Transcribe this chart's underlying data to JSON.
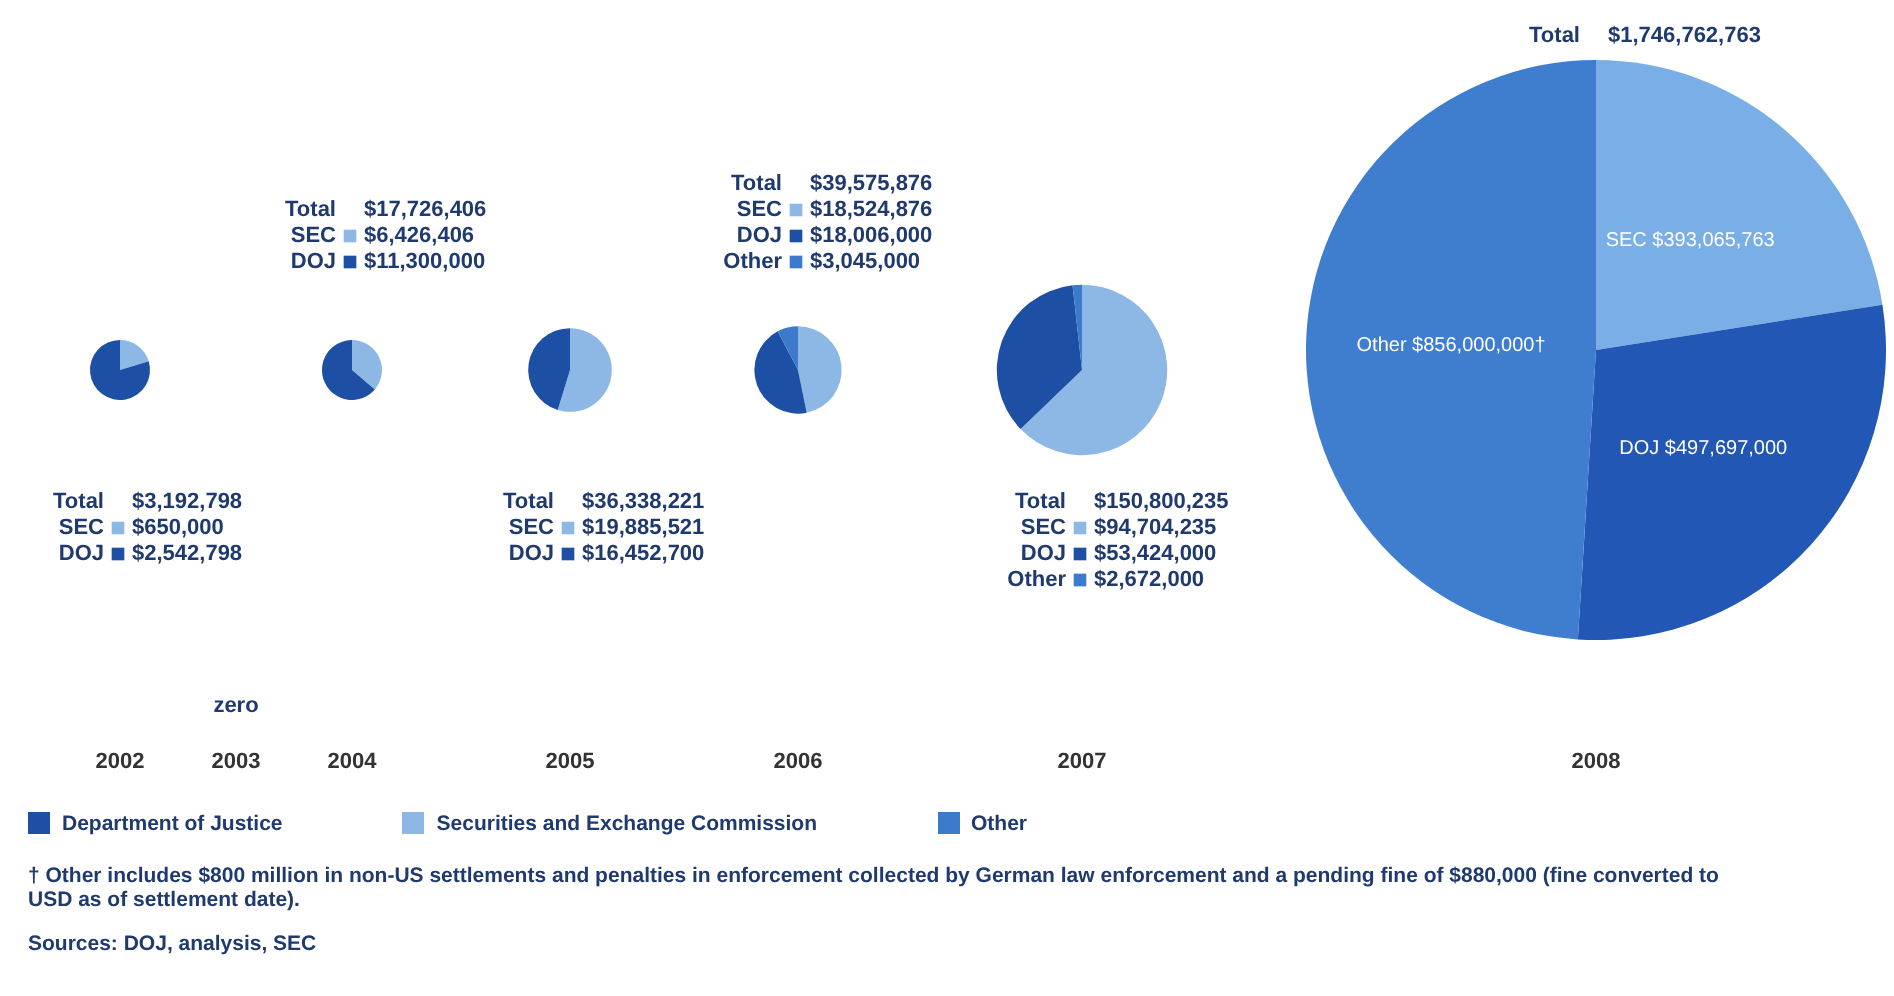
{
  "chart_data": [
    {
      "type": "pie",
      "title": "2002",
      "categories": [
        "SEC",
        "DOJ"
      ],
      "values": [
        650000,
        2542798
      ],
      "colors": [
        "#8db8e6",
        "#1d4fa5"
      ],
      "value_labels": [
        "$650,000",
        "$2,542,798"
      ],
      "annotations": [
        "Total",
        "$3,192,798"
      ],
      "legend": "bottom"
    },
    {
      "type": "other",
      "title": "2003",
      "annotations": [
        "zero"
      ]
    },
    {
      "type": "pie",
      "title": "2004",
      "categories": [
        "SEC",
        "DOJ"
      ],
      "values": [
        6426406,
        11300000
      ],
      "colors": [
        "#8db8e6",
        "#1d4fa5"
      ],
      "value_labels": [
        "$6,426,406",
        "$11,300,000"
      ],
      "annotations": [
        "Total",
        "$17,726,406"
      ],
      "legend": "top"
    },
    {
      "type": "pie",
      "title": "2005",
      "categories": [
        "SEC",
        "DOJ"
      ],
      "values": [
        19885521,
        16452700
      ],
      "colors": [
        "#8db8e6",
        "#1d4fa5"
      ],
      "value_labels": [
        "$19,885,521",
        "$16,452,700"
      ],
      "annotations": [
        "Total",
        "$36,338,221"
      ],
      "legend": "bottom"
    },
    {
      "type": "pie",
      "title": "2006",
      "categories": [
        "SEC",
        "DOJ",
        "Other"
      ],
      "values": [
        18524876,
        18006000,
        3045000
      ],
      "colors": [
        "#8db8e6",
        "#1d4fa5",
        "#3c7acb"
      ],
      "value_labels": [
        "$18,524,876",
        "$18,006,000",
        "$3,045,000"
      ],
      "annotations": [
        "Total",
        "$39,575,876"
      ],
      "legend": "top"
    },
    {
      "type": "pie",
      "title": "2007",
      "categories": [
        "SEC",
        "DOJ",
        "Other"
      ],
      "values": [
        94704235,
        53424000,
        2672000
      ],
      "colors": [
        "#8db8e6",
        "#1d4fa5",
        "#3c7acb"
      ],
      "value_labels": [
        "$94,704,235",
        "$53,424,000",
        "$2,672,000"
      ],
      "annotations": [
        "Total",
        "$150,800,235"
      ],
      "legend": "bottom"
    },
    {
      "type": "pie",
      "title": "2008",
      "categories": [
        "SEC",
        "DOJ",
        "Other"
      ],
      "values": [
        393065763,
        497697000,
        856000000
      ],
      "colors": [
        "#7aaee6",
        "#2257b5",
        "#3f7ecf"
      ],
      "value_labels": [
        "$393,065,763",
        "$497,697,000",
        "$856,000,000†"
      ],
      "annotations": [
        "Total",
        "$1,746,762,763"
      ]
    },
    {
      "type": "other",
      "annotations": [
        "Department of Justice",
        "Securities and Exchange Commission",
        "Other",
        "† Other includes $800 million in non-US settlements and penalties in enforcement collected by German law enforcement and a pending fine of $880,000 (fine converted to USD as of settlement date).",
        "Sources: DOJ, analysis, SEC"
      ]
    }
  ]
}
